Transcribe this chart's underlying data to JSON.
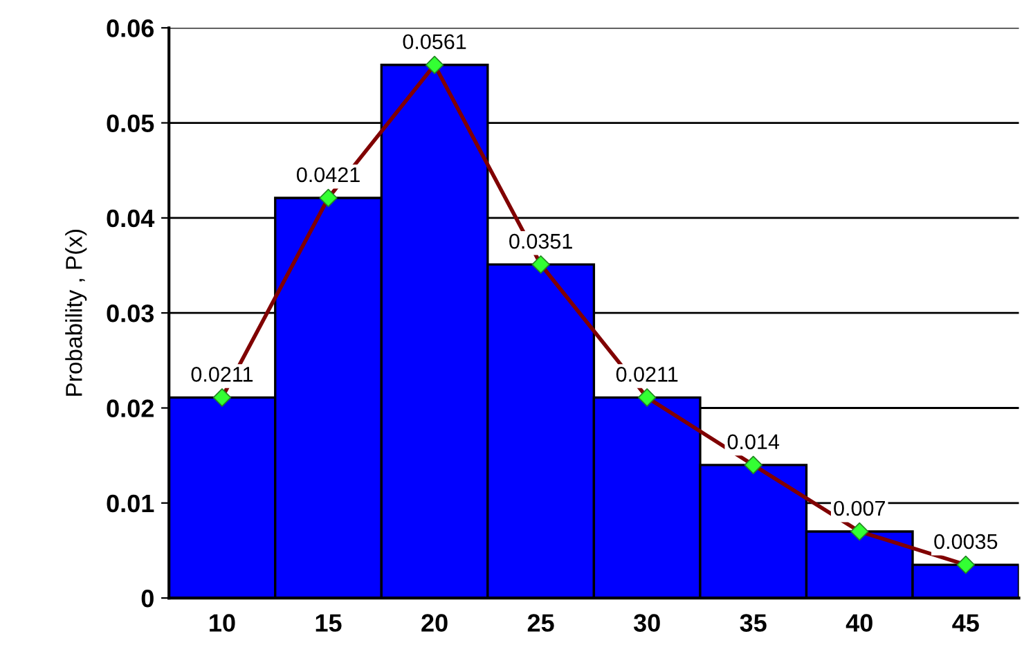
{
  "chart_data": {
    "type": "bar",
    "ylabel": "Probability , P(x)",
    "categories": [
      "10",
      "15",
      "20",
      "25",
      "30",
      "35",
      "40",
      "45"
    ],
    "series": [
      {
        "color": "#0000ff",
        "values": [
          0.0211,
          0.0421,
          0.0561,
          0.0351,
          0.0211,
          0.014,
          0.007,
          0.0035
        ]
      },
      {
        "type": "line",
        "color": "#800000",
        "colors": [
          "#33ff33",
          "#33ff33",
          "#33ff33",
          "#33ff33",
          "#33ff33",
          "#33ff33",
          "#33ff33",
          "#33ff33"
        ],
        "marker": "diamond",
        "values": [
          0.0211,
          0.0421,
          0.0561,
          0.0351,
          0.0211,
          0.014,
          0.007,
          0.0035
        ],
        "value_labels": [
          "0.0211",
          "0.0421",
          "0.0561",
          "0.0351",
          "0.0211",
          "0.014",
          "0.007",
          "0.0035"
        ]
      }
    ],
    "ylim": [
      0,
      0.06
    ],
    "yticks": [
      0,
      0.01,
      0.02,
      0.03,
      0.04,
      0.05,
      0.06
    ],
    "grid": "y"
  }
}
